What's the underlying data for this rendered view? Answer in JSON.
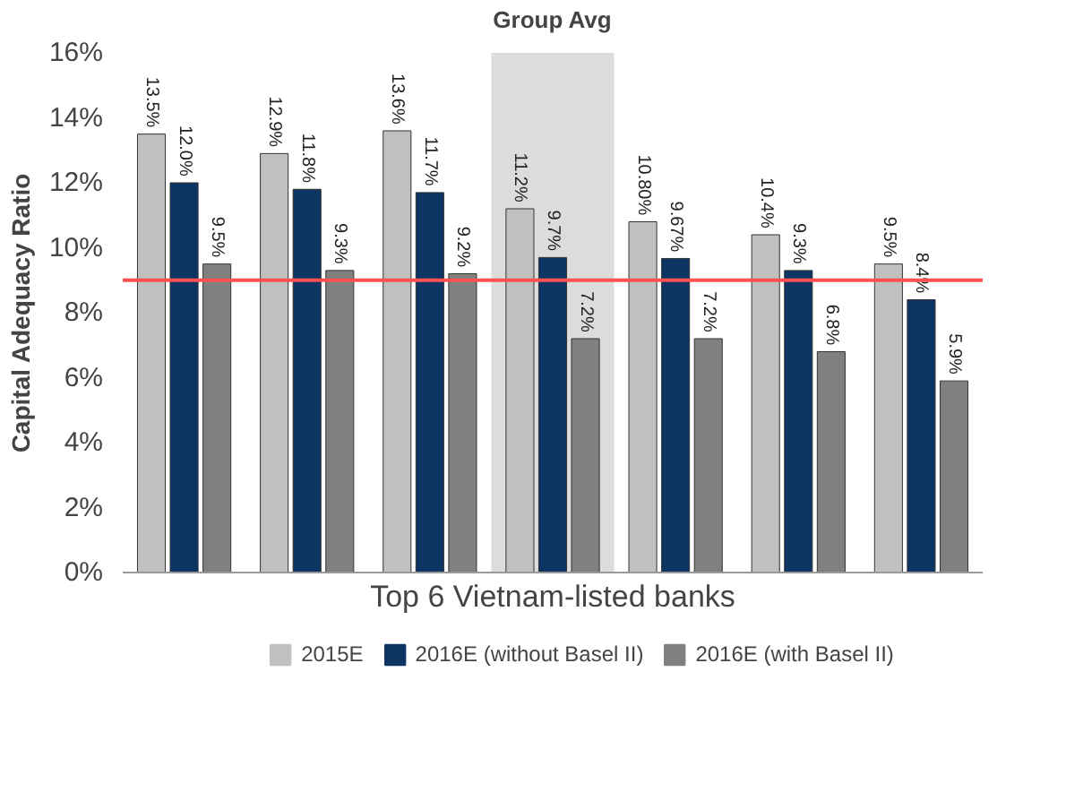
{
  "chart_data": {
    "type": "bar",
    "xlabel": "Top 6 Vietnam-listed banks",
    "ylabel": "Capital Adequacy Ratio",
    "categories": [
      null,
      null,
      null,
      "Group Avg",
      null,
      null,
      null
    ],
    "series": [
      {
        "name": "2015E",
        "color": "#c0c0c0",
        "values": [
          13.5,
          12.9,
          13.6,
          11.2,
          10.8,
          10.4,
          9.5
        ],
        "value_labels": [
          "13.5%",
          "12.9%",
          "13.6%",
          "11.2%",
          "10.80%",
          "10.4%",
          "9.5%"
        ]
      },
      {
        "name": "2016E (without Basel II)",
        "color": "#0d3563",
        "values": [
          12.0,
          11.8,
          11.7,
          9.7,
          9.67,
          9.3,
          8.4
        ],
        "value_labels": [
          "12.0%",
          "11.8%",
          "11.7%",
          "9.7%",
          "9.67%",
          "9.3%",
          "8.4%"
        ]
      },
      {
        "name": "2016E (with Basel II)",
        "color": "#808080",
        "values": [
          9.5,
          9.3,
          9.2,
          7.2,
          7.2,
          6.8,
          5.9
        ],
        "value_labels": [
          "9.5%",
          "9.3%",
          "9.2%",
          "7.2%",
          "7.2%",
          "6.8%",
          "5.9%"
        ]
      }
    ],
    "ylim": [
      0,
      16
    ],
    "yticks": [
      {
        "value": 0,
        "label": "0%"
      },
      {
        "value": 2,
        "label": "2%"
      },
      {
        "value": 4,
        "label": "4%"
      },
      {
        "value": 6,
        "label": "6%"
      },
      {
        "value": 8,
        "label": "8%"
      },
      {
        "value": 10,
        "label": "10%"
      },
      {
        "value": 12,
        "label": "12%"
      },
      {
        "value": 14,
        "label": "14%"
      },
      {
        "value": 16,
        "label": "16%"
      }
    ],
    "ref_lines": [
      {
        "axis": "y",
        "value": 9,
        "color": "#ff5050"
      }
    ],
    "bands": [
      {
        "axis": "x",
        "from": "Group Avg",
        "to": "Group Avg",
        "color": "#dcdcdc"
      }
    ],
    "grid": false,
    "legend": "bottom"
  }
}
